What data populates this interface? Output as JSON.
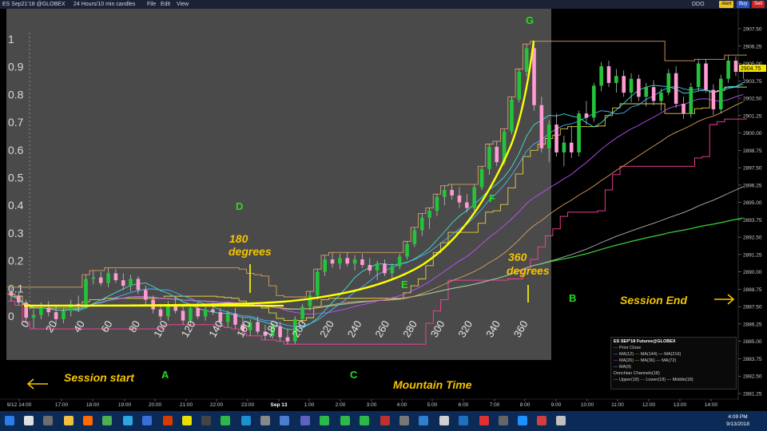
{
  "window": {
    "title": "ES Sep21'18 @GLOBEX",
    "timeframe": "24 Hours/10 min candles",
    "menus": [
      "File",
      "Edit",
      "View"
    ],
    "buttons": {
      "alert": "Alert",
      "buy": "Buy",
      "sell": "Sell"
    },
    "ddo": "DDO"
  },
  "colors": {
    "panel": "#4a4a4a",
    "candle_up": "#23c43a",
    "candle_down": "#ff9ad2",
    "fit_curve": "#ffff00",
    "annotation_yellow": "#f5c400",
    "annotation_green": "#22dd22"
  },
  "chart_data": {
    "type": "candlestick",
    "left_axis": {
      "ticks": [
        "1",
        "0.9",
        "0.8",
        "0.7",
        "0.6",
        "0.5",
        "0.4",
        "0.3",
        "0.2",
        "0.1",
        "0"
      ]
    },
    "price_axis": {
      "ticks": [
        "2907.50",
        "2906.25",
        "2905.00",
        "2903.75",
        "2902.50",
        "2901.25",
        "2900.00",
        "2898.75",
        "2897.50",
        "2896.25",
        "2895.00",
        "2893.75",
        "2892.50",
        "2891.25",
        "2890.00",
        "2888.75",
        "2887.50",
        "2886.25",
        "2885.00",
        "2883.75",
        "2882.50",
        "2881.25"
      ],
      "last_price": "2904.75"
    },
    "time_axis": {
      "ticks": [
        "9/12 14:00",
        "17:00",
        "18:00",
        "19:00",
        "20:00",
        "21:00",
        "22:00",
        "23:00",
        "Sep 13",
        "1:00",
        "2:00",
        "3:00",
        "4:00",
        "5:00",
        "6:00",
        "7:00",
        "8:00",
        "9:00",
        "10:00",
        "11:00",
        "12:00",
        "13:00",
        "14:00"
      ]
    },
    "degree_axis": {
      "ticks": [
        "0",
        "20",
        "40",
        "60",
        "80",
        "100",
        "120",
        "140",
        "160",
        "180",
        "200",
        "220",
        "240",
        "260",
        "280",
        "300",
        "320",
        "340",
        "360"
      ]
    },
    "candles": [
      [
        2888.6,
        2888.9,
        2887.9,
        2888.3
      ],
      [
        2888.3,
        2888.5,
        2887.6,
        2887.8
      ],
      [
        2887.8,
        2888.0,
        2886.4,
        2886.7
      ],
      [
        2886.7,
        2887.3,
        2885.9,
        2886.9
      ],
      [
        2886.9,
        2887.8,
        2886.6,
        2887.4
      ],
      [
        2887.4,
        2887.9,
        2886.8,
        2887.1
      ],
      [
        2887.1,
        2887.6,
        2886.2,
        2886.6
      ],
      [
        2886.6,
        2887.4,
        2886.3,
        2887.2
      ],
      [
        2887.2,
        2888.0,
        2886.8,
        2887.7
      ],
      [
        2887.7,
        2888.3,
        2887.1,
        2887.5
      ],
      [
        2887.5,
        2889.8,
        2887.4,
        2889.5
      ],
      [
        2889.5,
        2890.1,
        2889.1,
        2889.6
      ],
      [
        2889.6,
        2890.0,
        2889.0,
        2889.2
      ],
      [
        2889.2,
        2890.3,
        2888.9,
        2889.9
      ],
      [
        2889.9,
        2890.2,
        2889.2,
        2889.4
      ],
      [
        2889.4,
        2889.9,
        2888.7,
        2889.0
      ],
      [
        2889.0,
        2889.8,
        2888.6,
        2889.5
      ],
      [
        2889.5,
        2889.7,
        2888.4,
        2888.7
      ],
      [
        2888.7,
        2889.0,
        2887.6,
        2888.0
      ],
      [
        2888.0,
        2888.3,
        2887.0,
        2887.3
      ],
      [
        2887.3,
        2887.7,
        2886.5,
        2886.8
      ],
      [
        2886.8,
        2887.9,
        2886.5,
        2887.6
      ],
      [
        2887.6,
        2888.2,
        2887.0,
        2887.2
      ],
      [
        2887.2,
        2887.6,
        2886.2,
        2886.5
      ],
      [
        2886.5,
        2887.6,
        2886.2,
        2887.4
      ],
      [
        2887.4,
        2887.8,
        2886.6,
        2886.8
      ],
      [
        2886.8,
        2887.5,
        2886.5,
        2887.3
      ],
      [
        2887.3,
        2887.8,
        2886.9,
        2887.1
      ],
      [
        2887.1,
        2887.4,
        2886.1,
        2886.4
      ],
      [
        2886.4,
        2887.2,
        2886.0,
        2887.0
      ],
      [
        2887.0,
        2887.4,
        2885.9,
        2886.2
      ],
      [
        2886.2,
        2886.7,
        2885.6,
        2885.8
      ],
      [
        2885.8,
        2886.6,
        2885.4,
        2886.4
      ],
      [
        2886.4,
        2886.8,
        2885.5,
        2885.7
      ],
      [
        2885.7,
        2886.2,
        2885.1,
        2885.4
      ],
      [
        2885.4,
        2886.3,
        2885.2,
        2886.1
      ],
      [
        2886.1,
        2886.4,
        2885.0,
        2885.3
      ],
      [
        2885.3,
        2885.9,
        2884.8,
        2885.0
      ],
      [
        2885.0,
        2886.8,
        2884.8,
        2886.6
      ],
      [
        2886.6,
        2887.7,
        2886.3,
        2887.5
      ],
      [
        2887.5,
        2888.6,
        2887.2,
        2888.3
      ],
      [
        2888.3,
        2890.2,
        2888.0,
        2890.0
      ],
      [
        2890.0,
        2891.2,
        2889.7,
        2890.9
      ],
      [
        2890.9,
        2891.4,
        2890.3,
        2890.6
      ],
      [
        2890.6,
        2891.3,
        2890.2,
        2891.0
      ],
      [
        2891.0,
        2891.4,
        2890.4,
        2890.6
      ],
      [
        2890.6,
        2891.2,
        2890.1,
        2890.9
      ],
      [
        2890.9,
        2891.3,
        2890.3,
        2890.5
      ],
      [
        2890.5,
        2891.0,
        2889.8,
        2890.1
      ],
      [
        2890.1,
        2890.8,
        2889.4,
        2890.6
      ],
      [
        2890.6,
        2890.9,
        2889.7,
        2889.9
      ],
      [
        2889.9,
        2890.6,
        2889.5,
        2890.4
      ],
      [
        2890.4,
        2891.3,
        2890.2,
        2891.1
      ],
      [
        2891.1,
        2892.2,
        2890.9,
        2892.0
      ],
      [
        2892.0,
        2893.2,
        2891.8,
        2893.0
      ],
      [
        2893.0,
        2894.2,
        2892.6,
        2893.9
      ],
      [
        2893.9,
        2894.6,
        2893.1,
        2894.4
      ],
      [
        2894.4,
        2895.6,
        2894.0,
        2895.4
      ],
      [
        2895.4,
        2896.2,
        2894.8,
        2895.9
      ],
      [
        2895.9,
        2896.3,
        2895.2,
        2895.5
      ],
      [
        2895.5,
        2896.1,
        2894.6,
        2895.0
      ],
      [
        2895.0,
        2895.6,
        2894.3,
        2894.6
      ],
      [
        2894.6,
        2896.3,
        2894.4,
        2896.1
      ],
      [
        2896.1,
        2897.6,
        2895.9,
        2897.4
      ],
      [
        2897.4,
        2899.2,
        2897.0,
        2899.0
      ],
      [
        2899.0,
        2899.4,
        2897.6,
        2897.9
      ],
      [
        2897.9,
        2900.3,
        2897.7,
        2900.1
      ],
      [
        2900.1,
        2902.6,
        2899.9,
        2902.4
      ],
      [
        2902.4,
        2904.6,
        2902.2,
        2904.4
      ],
      [
        2904.4,
        2906.4,
        2904.1,
        2906.1
      ],
      [
        2906.1,
        2906.6,
        2901.6,
        2902.0
      ],
      [
        2902.0,
        2902.6,
        2898.6,
        2898.9
      ],
      [
        2898.9,
        2900.9,
        2897.9,
        2900.6
      ],
      [
        2900.6,
        2901.4,
        2898.3,
        2898.6
      ],
      [
        2898.6,
        2899.8,
        2897.6,
        2899.3
      ],
      [
        2899.3,
        2900.5,
        2898.2,
        2898.6
      ],
      [
        2898.6,
        2901.6,
        2898.3,
        2901.4
      ],
      [
        2901.4,
        2902.3,
        2900.6,
        2901.1
      ],
      [
        2901.1,
        2903.6,
        2900.8,
        2903.4
      ],
      [
        2903.4,
        2905.1,
        2903.0,
        2904.8
      ],
      [
        2904.8,
        2905.2,
        2903.3,
        2903.6
      ],
      [
        2903.6,
        2904.6,
        2902.9,
        2904.1
      ],
      [
        2904.1,
        2904.5,
        2902.6,
        2902.9
      ],
      [
        2902.9,
        2904.3,
        2902.2,
        2903.9
      ],
      [
        2903.9,
        2904.2,
        2902.3,
        2902.6
      ],
      [
        2902.6,
        2903.6,
        2901.9,
        2903.3
      ],
      [
        2903.3,
        2903.8,
        2902.0,
        2902.3
      ],
      [
        2902.3,
        2903.2,
        2901.6,
        2902.9
      ],
      [
        2902.9,
        2904.6,
        2902.7,
        2904.3
      ],
      [
        2904.3,
        2904.8,
        2901.8,
        2902.1
      ],
      [
        2902.1,
        2902.6,
        2901.0,
        2901.4
      ],
      [
        2901.4,
        2903.6,
        2901.1,
        2903.3
      ],
      [
        2903.3,
        2905.3,
        2903.0,
        2905.0
      ],
      [
        2905.0,
        2905.3,
        2902.9,
        2903.1
      ],
      [
        2903.1,
        2903.5,
        2901.3,
        2901.7
      ],
      [
        2901.7,
        2904.2,
        2901.4,
        2903.9
      ],
      [
        2903.9,
        2905.6,
        2903.6,
        2905.2
      ],
      [
        2905.2,
        2905.5,
        2904.1,
        2904.4
      ],
      [
        2904.4,
        2905.0,
        2903.9,
        2904.75
      ]
    ]
  },
  "annotations": {
    "session_start": "Session start",
    "session_end": "Session End",
    "mountain_time": "Mountain Time",
    "deg180_a": "180",
    "deg180_b": "degrees",
    "deg360_a": "360",
    "deg360_b": "degrees",
    "points": [
      "A",
      "B",
      "C",
      "D",
      "E",
      "F",
      "G"
    ]
  },
  "legend": {
    "title": "ES SEP'18 Futures@GLOBEX",
    "items": [
      "Prior Close",
      "MA(12)",
      "MA(144)",
      "MA(216)",
      "MA(26)",
      "MA(36)",
      "MA(72)",
      "MA(9)",
      "Donchian Channels(18)",
      "Upper(18)",
      "Lower(18)",
      "Middle(18)"
    ]
  },
  "taskbar": {
    "time": "4:09 PM",
    "date": "9/13/2018"
  }
}
